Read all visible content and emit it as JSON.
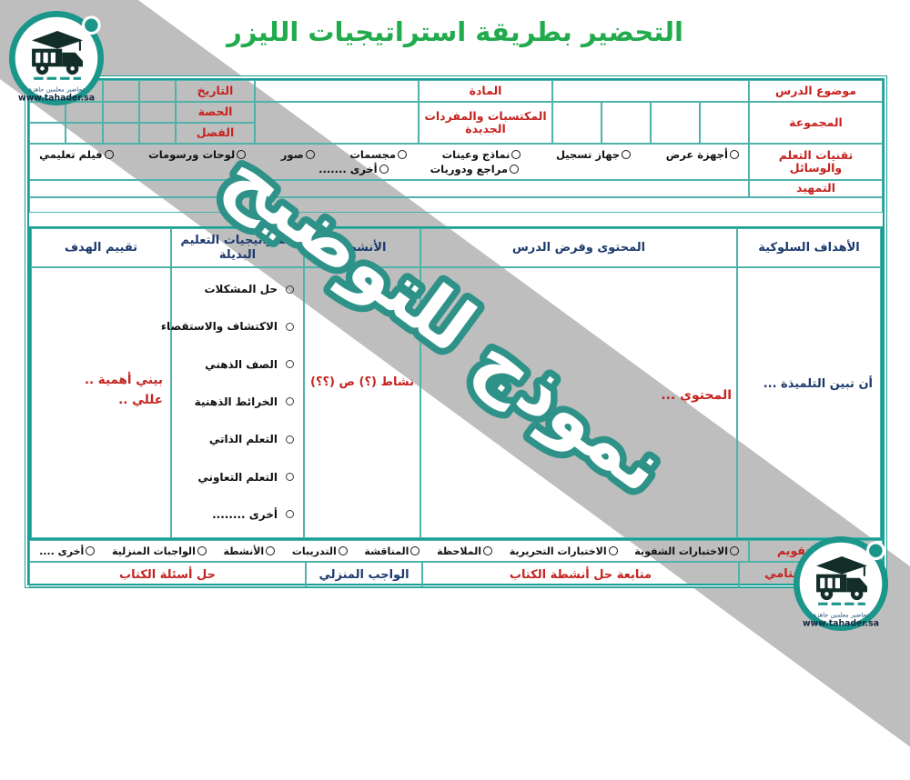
{
  "title": "التحضير بطريقة استراتيجيات الليزر",
  "watermark_text": "نموذج للتوضيح",
  "logo": {
    "tagline": "تحاضير معلمين جاهزة",
    "website": "www.tahader.sa"
  },
  "colors": {
    "accent_teal": "#18a096",
    "label_red": "#c5231f",
    "header_navy": "#1c3a6e",
    "title_green": "#22ab4d",
    "band_gray": "#969696"
  },
  "info": {
    "topic_label": "موضوع الدرس",
    "group_label": "المجموعة",
    "subject_label": "المادة",
    "acquisitions_label": "المكتسبات والمفردات الجديدة",
    "date_label": "التاريخ",
    "period_label": "الحصة",
    "class_label": "الفصل"
  },
  "tech": {
    "label": "تقنيات التعلم والوسائل",
    "row1": [
      "أجهزة عرض",
      "جهاز تسجيل",
      "نماذج وعينات",
      "مجسمات",
      "صور",
      "لوحات ورسومات",
      "فيلم تعليمي"
    ],
    "row2": [
      "مراجع ودوريات",
      "أخرى ......."
    ]
  },
  "intro_label": "التمهيد",
  "main": {
    "headers": {
      "objectives": "الأهداف السلوكية",
      "content": "المحتوى وفرض الدرس",
      "activities": "الأنشطة",
      "strategies": "استراتيجيات التعليم البديلة",
      "evaluation": "تقييم الهدف"
    },
    "objectives_text": "أن تبين التلميذة ...",
    "content_text": "المحتوي ...",
    "activities_text": "نشاط (؟) ص (؟؟)",
    "strategies_items": [
      "حل المشكلات",
      "الاكتشاف والاستقصاء",
      "الصف الذهني",
      "الخرائط الذهنية",
      "التعلم الذاتي",
      "التعلم التعاوني",
      "أخرى ........"
    ],
    "evaluation_line1": "بيني أهمية ..",
    "evaluation_line2": "عللي .."
  },
  "footer": {
    "tools_label": "أدوات التقويم",
    "tools_items": [
      "الاختبارات الشفوية",
      "الاختبارات التحريرية",
      "الملاحظة",
      "المناقشة",
      "التدريبات",
      "الأنشطة",
      "الواجبات المنزلية",
      "أخرى ...."
    ],
    "final_label": "التقويم الختامي",
    "final_followup": "متابعة حل أنشطة الكتاب",
    "homework_label": "الواجب المنزلي",
    "homework_value": "حل أسئلة الكتاب"
  }
}
